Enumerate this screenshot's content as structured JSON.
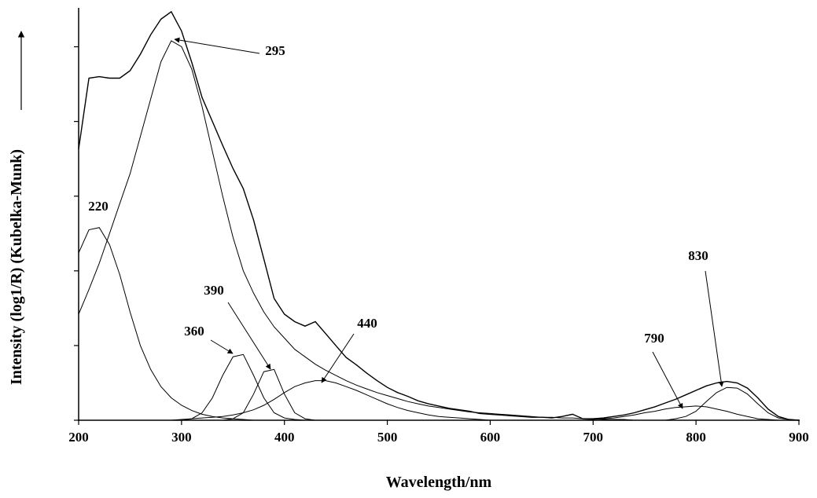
{
  "chart_data": {
    "type": "line",
    "x_label": "Wavelength/nm",
    "y_label": "Intensity (log1/R) (Kubelka-Munk)",
    "xlim": [
      200,
      900
    ],
    "xticks": [
      200,
      300,
      400,
      500,
      600,
      700,
      800,
      900
    ],
    "ylim": [
      0,
      5.5
    ],
    "yticks": [
      0,
      1,
      2,
      3,
      4,
      5
    ],
    "x": [
      200,
      210,
      220,
      230,
      240,
      250,
      260,
      270,
      280,
      290,
      300,
      310,
      320,
      330,
      340,
      350,
      360,
      370,
      380,
      390,
      400,
      410,
      420,
      430,
      440,
      450,
      460,
      470,
      480,
      490,
      500,
      510,
      520,
      530,
      540,
      550,
      560,
      570,
      580,
      590,
      600,
      610,
      620,
      630,
      640,
      650,
      660,
      670,
      680,
      690,
      700,
      710,
      720,
      730,
      740,
      750,
      760,
      770,
      780,
      790,
      800,
      810,
      820,
      830,
      840,
      850,
      860,
      870,
      880,
      890,
      900
    ],
    "series": [
      {
        "color": "#000000",
        "values": [
          3.63,
          4.58,
          4.6,
          4.58,
          4.58,
          4.68,
          4.9,
          5.16,
          5.37,
          5.47,
          5.21,
          4.79,
          4.32,
          4.0,
          3.68,
          3.37,
          3.1,
          2.68,
          2.16,
          1.63,
          1.42,
          1.32,
          1.26,
          1.32,
          1.16,
          1.0,
          0.84,
          0.74,
          0.63,
          0.53,
          0.44,
          0.37,
          0.32,
          0.26,
          0.22,
          0.19,
          0.16,
          0.14,
          0.12,
          0.09,
          0.08,
          0.07,
          0.06,
          0.05,
          0.04,
          0.04,
          0.03,
          0.05,
          0.08,
          0.02,
          0.02,
          0.03,
          0.05,
          0.07,
          0.1,
          0.14,
          0.18,
          0.23,
          0.28,
          0.34,
          0.4,
          0.46,
          0.5,
          0.52,
          0.5,
          0.43,
          0.3,
          0.15,
          0.05,
          0.01,
          0
        ]
      },
      {
        "color": "#000000",
        "values": [
          2.24,
          2.55,
          2.58,
          2.35,
          1.95,
          1.45,
          1.0,
          0.68,
          0.45,
          0.3,
          0.2,
          0.13,
          0.08,
          0.05,
          0.03,
          0.02,
          0.01,
          0,
          0,
          0,
          0,
          0,
          0,
          0,
          0,
          0,
          0,
          0,
          0,
          0,
          0,
          0,
          0,
          0,
          0,
          0,
          0,
          0,
          0,
          0,
          0,
          0,
          0,
          0,
          0,
          0,
          0,
          0,
          0,
          0,
          0,
          0,
          0,
          0,
          0,
          0,
          0,
          0,
          0,
          0,
          0,
          0,
          0,
          0,
          0,
          0,
          0,
          0,
          0,
          0,
          0
        ]
      },
      {
        "color": "#000000",
        "values": [
          1.42,
          1.75,
          2.1,
          2.5,
          2.9,
          3.3,
          3.8,
          4.3,
          4.8,
          5.08,
          5.0,
          4.7,
          4.2,
          3.6,
          3.0,
          2.45,
          2.0,
          1.7,
          1.45,
          1.25,
          1.1,
          0.95,
          0.85,
          0.75,
          0.67,
          0.6,
          0.53,
          0.47,
          0.42,
          0.37,
          0.33,
          0.29,
          0.25,
          0.22,
          0.19,
          0.17,
          0.15,
          0.13,
          0.11,
          0.1,
          0.09,
          0.08,
          0.07,
          0.06,
          0.05,
          0.04,
          0.04,
          0.03,
          0.03,
          0.02,
          0.02,
          0.01,
          0.01,
          0.01,
          0,
          0,
          0,
          0,
          0,
          0,
          0,
          0,
          0,
          0,
          0,
          0,
          0,
          0,
          0,
          0,
          0
        ]
      },
      {
        "color": "#000000",
        "values": [
          0,
          0,
          0,
          0,
          0,
          0,
          0,
          0,
          0,
          0,
          0,
          0.02,
          0.1,
          0.3,
          0.6,
          0.85,
          0.88,
          0.6,
          0.3,
          0.1,
          0.03,
          0.01,
          0,
          0,
          0,
          0,
          0,
          0,
          0,
          0,
          0,
          0,
          0,
          0,
          0,
          0,
          0,
          0,
          0,
          0,
          0,
          0,
          0,
          0,
          0,
          0,
          0,
          0,
          0,
          0,
          0,
          0,
          0,
          0,
          0,
          0,
          0,
          0,
          0,
          0,
          0,
          0,
          0,
          0,
          0,
          0,
          0,
          0,
          0,
          0,
          0
        ]
      },
      {
        "color": "#000000",
        "values": [
          0,
          0,
          0,
          0,
          0,
          0,
          0,
          0,
          0,
          0,
          0,
          0,
          0,
          0,
          0,
          0.02,
          0.1,
          0.35,
          0.65,
          0.68,
          0.35,
          0.1,
          0.02,
          0,
          0,
          0,
          0,
          0,
          0,
          0,
          0,
          0,
          0,
          0,
          0,
          0,
          0,
          0,
          0,
          0,
          0,
          0,
          0,
          0,
          0,
          0,
          0,
          0,
          0,
          0,
          0,
          0,
          0,
          0,
          0,
          0,
          0,
          0,
          0,
          0,
          0,
          0,
          0,
          0,
          0,
          0,
          0,
          0,
          0,
          0,
          0
        ]
      },
      {
        "color": "#000000",
        "values": [
          0,
          0,
          0,
          0,
          0,
          0,
          0,
          0,
          0,
          0,
          0.01,
          0.02,
          0.03,
          0.04,
          0.05,
          0.07,
          0.1,
          0.14,
          0.2,
          0.28,
          0.37,
          0.45,
          0.5,
          0.53,
          0.53,
          0.5,
          0.45,
          0.4,
          0.34,
          0.28,
          0.22,
          0.17,
          0.13,
          0.1,
          0.07,
          0.05,
          0.04,
          0.03,
          0.02,
          0.01,
          0,
          0,
          0,
          0,
          0,
          0,
          0,
          0,
          0,
          0,
          0,
          0,
          0,
          0,
          0,
          0,
          0,
          0,
          0,
          0,
          0,
          0,
          0,
          0,
          0,
          0,
          0,
          0,
          0,
          0,
          0
        ]
      },
      {
        "color": "#000000",
        "values": [
          0,
          0,
          0,
          0,
          0,
          0,
          0,
          0,
          0,
          0,
          0,
          0,
          0,
          0,
          0,
          0,
          0,
          0,
          0,
          0,
          0,
          0,
          0,
          0,
          0,
          0,
          0,
          0,
          0,
          0,
          0,
          0,
          0,
          0,
          0,
          0,
          0,
          0,
          0,
          0,
          0,
          0,
          0,
          0,
          0,
          0,
          0,
          0,
          0,
          0,
          0.01,
          0.02,
          0.03,
          0.05,
          0.07,
          0.1,
          0.12,
          0.15,
          0.17,
          0.18,
          0.19,
          0.18,
          0.15,
          0.12,
          0.08,
          0.05,
          0.02,
          0.01,
          0,
          0,
          0
        ]
      },
      {
        "color": "#000000",
        "values": [
          0,
          0,
          0,
          0,
          0,
          0,
          0,
          0,
          0,
          0,
          0,
          0,
          0,
          0,
          0,
          0,
          0,
          0,
          0,
          0,
          0,
          0,
          0,
          0,
          0,
          0,
          0,
          0,
          0,
          0,
          0,
          0,
          0,
          0,
          0,
          0,
          0,
          0,
          0,
          0,
          0,
          0,
          0,
          0,
          0,
          0,
          0,
          0,
          0,
          0,
          0,
          0,
          0,
          0,
          0,
          0,
          0,
          0,
          0.02,
          0.05,
          0.12,
          0.25,
          0.37,
          0.44,
          0.43,
          0.35,
          0.22,
          0.1,
          0.03,
          0.01,
          0
        ]
      }
    ],
    "annotations": [
      {
        "text": "220"
      },
      {
        "text": "295"
      },
      {
        "text": "360"
      },
      {
        "text": "390"
      },
      {
        "text": "440"
      },
      {
        "text": "790"
      },
      {
        "text": "830"
      }
    ]
  }
}
